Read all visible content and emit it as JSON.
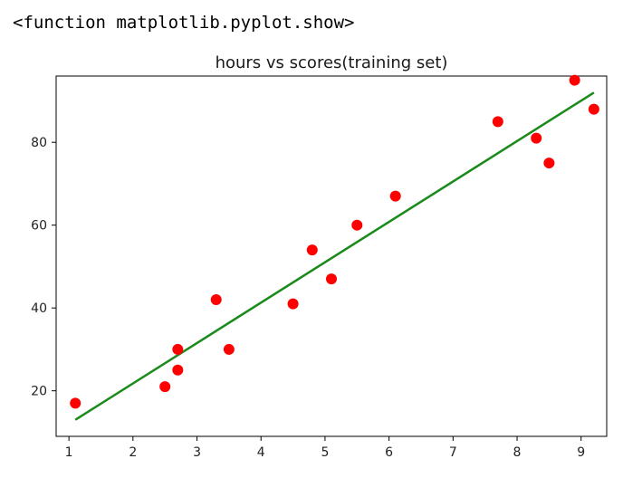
{
  "output": {
    "repr_text": "<function matplotlib.pyplot.show>"
  },
  "colors": {
    "points": "#ff0000",
    "line": "#1a8a1a",
    "axes": "#000000"
  },
  "chart_data": {
    "type": "scatter",
    "title": "hours vs scores(training set)",
    "xlabel": "",
    "ylabel": "",
    "xlim": [
      0.8,
      9.4
    ],
    "ylim": [
      9,
      96
    ],
    "xticks": [
      1,
      2,
      3,
      4,
      5,
      6,
      7,
      8,
      9
    ],
    "yticks": [
      20,
      40,
      60,
      80
    ],
    "grid": false,
    "legend": "none",
    "series": [
      {
        "kind": "scatter",
        "x": [
          1.1,
          2.5,
          2.7,
          2.7,
          3.3,
          3.5,
          4.5,
          4.8,
          5.1,
          5.5,
          6.1,
          7.7,
          8.3,
          8.5,
          8.9,
          9.2
        ],
        "y": [
          17,
          21,
          25,
          30,
          42,
          30,
          41,
          54,
          47,
          60,
          67,
          85,
          81,
          75,
          95,
          88
        ]
      },
      {
        "kind": "line",
        "x": [
          1.1,
          9.2
        ],
        "y": [
          13,
          92
        ]
      }
    ]
  }
}
